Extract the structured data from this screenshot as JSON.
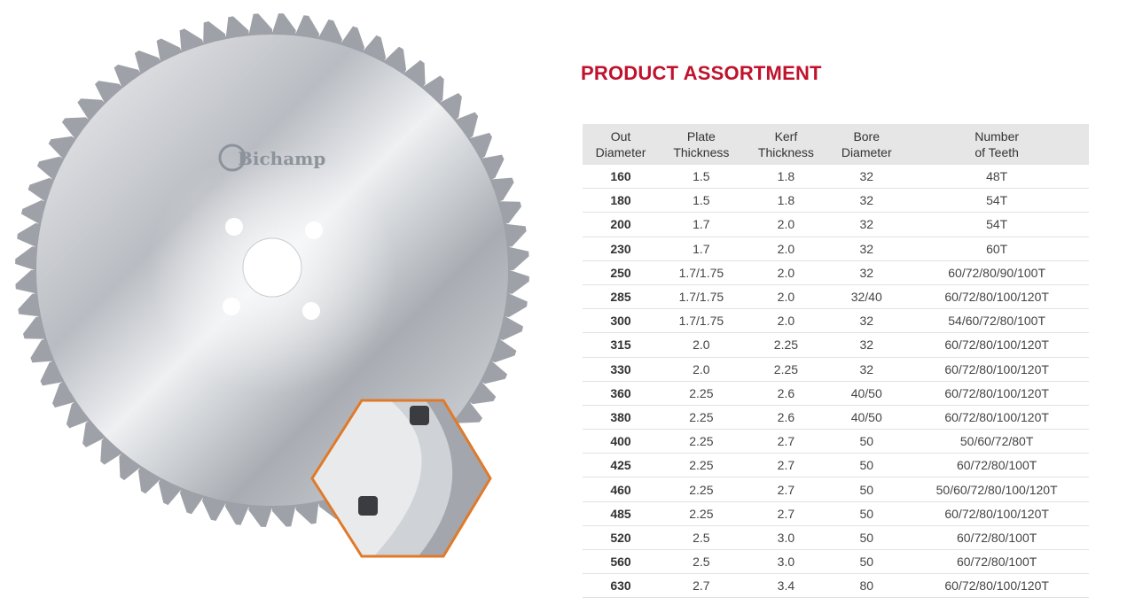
{
  "logo": "Bichamp",
  "title": "PRODUCT ASSORTMENT",
  "table": {
    "headers": [
      "Out\nDiameter",
      "Plate\nThickness",
      "Kerf\nThickness",
      "Bore\nDiameter",
      "Number\nof Teeth"
    ],
    "rows": [
      [
        "160",
        "1.5",
        "1.8",
        "32",
        "48T"
      ],
      [
        "180",
        "1.5",
        "1.8",
        "32",
        "54T"
      ],
      [
        "200",
        "1.7",
        "2.0",
        "32",
        "54T"
      ],
      [
        "230",
        "1.7",
        "2.0",
        "32",
        "60T"
      ],
      [
        "250",
        "1.7/1.75",
        "2.0",
        "32",
        "60/72/80/90/100T"
      ],
      [
        "285",
        "1.7/1.75",
        "2.0",
        "32/40",
        "60/72/80/100/120T"
      ],
      [
        "300",
        "1.7/1.75",
        "2.0",
        "32",
        "54/60/72/80/100T"
      ],
      [
        "315",
        "2.0",
        "2.25",
        "32",
        "60/72/80/100/120T"
      ],
      [
        "330",
        "2.0",
        "2.25",
        "32",
        "60/72/80/100/120T"
      ],
      [
        "360",
        "2.25",
        "2.6",
        "40/50",
        "60/72/80/100/120T"
      ],
      [
        "380",
        "2.25",
        "2.6",
        "40/50",
        "60/72/80/100/120T"
      ],
      [
        "400",
        "2.25",
        "2.7",
        "50",
        "50/60/72/80T"
      ],
      [
        "425",
        "2.25",
        "2.7",
        "50",
        "60/72/80/100T"
      ],
      [
        "460",
        "2.25",
        "2.7",
        "50",
        "50/60/72/80/100/120T"
      ],
      [
        "485",
        "2.25",
        "2.7",
        "50",
        "60/72/80/100/120T"
      ],
      [
        "520",
        "2.5",
        "3.0",
        "50",
        "60/72/80/100T"
      ],
      [
        "560",
        "2.5",
        "3.0",
        "50",
        "60/72/80/100T"
      ],
      [
        "630",
        "2.7",
        "3.4",
        "80",
        "60/72/80/100/120T"
      ]
    ]
  }
}
